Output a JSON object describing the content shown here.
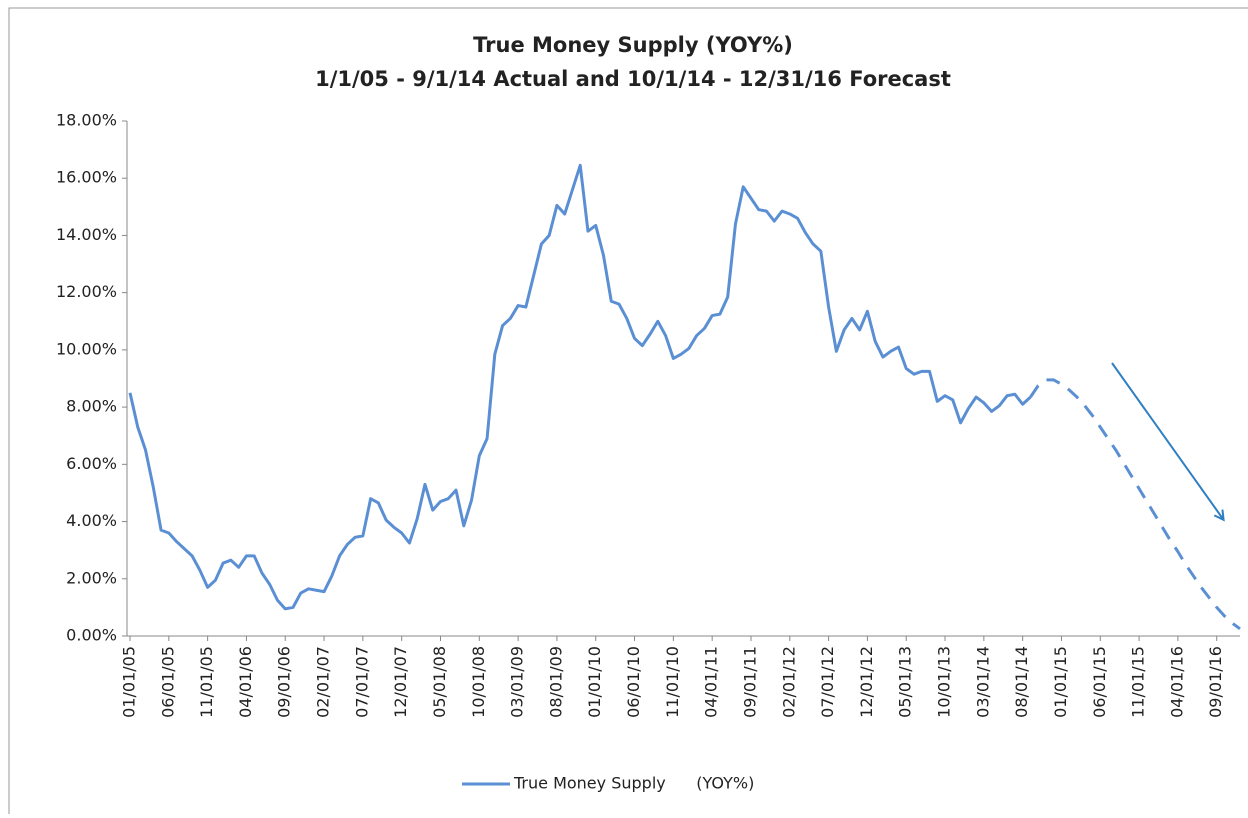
{
  "chart_data": {
    "type": "line",
    "title": "True Money Supply (YOY%)",
    "subtitle": "1/1/05 - 9/1/14 Actual and 10/1/14 - 12/31/16 Forecast",
    "categories": [
      "01/01/05",
      null,
      null,
      null,
      null,
      "06/01/05",
      null,
      null,
      null,
      null,
      "11/01/05",
      null,
      null,
      null,
      null,
      "04/01/06",
      null,
      null,
      null,
      null,
      "09/01/06",
      null,
      null,
      null,
      null,
      "02/01/07",
      null,
      null,
      null,
      null,
      "07/01/07",
      null,
      null,
      null,
      null,
      "12/01/07",
      null,
      null,
      null,
      null,
      "05/01/08",
      null,
      null,
      null,
      null,
      "10/01/08",
      null,
      null,
      null,
      null,
      "03/01/09",
      null,
      null,
      null,
      null,
      "08/01/09",
      null,
      null,
      null,
      null,
      "01/01/10",
      null,
      null,
      null,
      null,
      "06/01/10",
      null,
      null,
      null,
      null,
      "11/01/10",
      null,
      null,
      null,
      null,
      "04/01/11",
      null,
      null,
      null,
      null,
      "09/01/11",
      null,
      null,
      null,
      null,
      "02/01/12",
      null,
      null,
      null,
      null,
      "07/01/12",
      null,
      null,
      null,
      null,
      "12/01/12",
      null,
      null,
      null,
      null,
      "05/01/13",
      null,
      null,
      null,
      null,
      "10/01/13",
      null,
      null,
      null,
      null,
      "03/01/14",
      null,
      null,
      null,
      null,
      "08/01/14",
      null,
      null,
      null,
      null,
      "01/01/15",
      null,
      null,
      null,
      null,
      "06/01/15",
      null,
      null,
      null,
      null,
      "11/01/15",
      null,
      null,
      null,
      null,
      "04/01/16",
      null,
      null,
      null,
      null,
      "09/01/16",
      null,
      null,
      null
    ],
    "series": [
      {
        "name": "True Money Supply      (YOY%)",
        "color": "#5b8fd4",
        "style": "solid",
        "values": [
          8.5,
          7.3,
          6.5,
          5.2,
          3.7,
          3.6,
          3.3,
          3.05,
          2.8,
          2.3,
          1.7,
          1.95,
          2.55,
          2.65,
          2.4,
          2.8,
          2.8,
          2.2,
          1.8,
          1.25,
          0.95,
          1.0,
          1.5,
          1.65,
          1.6,
          1.55,
          2.1,
          2.8,
          3.2,
          3.45,
          3.5,
          4.8,
          4.65,
          4.05,
          3.8,
          3.6,
          3.25,
          4.1,
          5.3,
          4.4,
          4.7,
          4.8,
          5.1,
          3.85,
          4.75,
          6.3,
          6.9,
          9.85,
          10.85,
          11.1,
          11.55,
          11.5,
          12.6,
          13.7,
          14.0,
          15.05,
          14.75,
          15.6,
          16.45,
          14.15,
          14.35,
          13.3,
          11.7,
          11.6,
          11.1,
          10.4,
          10.15,
          10.55,
          11.0,
          10.5,
          9.7,
          9.85,
          10.05,
          10.5,
          10.75,
          11.2,
          11.25,
          11.85,
          14.4,
          15.7,
          15.3,
          14.9,
          14.85,
          14.5,
          14.85,
          14.75,
          14.6,
          14.1,
          13.7,
          13.45,
          11.5,
          9.95,
          10.7,
          11.1,
          10.7,
          11.35,
          10.3,
          9.75,
          9.95,
          10.1,
          9.35,
          9.15,
          9.25,
          9.25,
          8.2,
          8.4,
          8.25,
          7.45,
          7.95,
          8.35,
          8.15,
          7.85,
          8.05,
          8.4,
          8.45,
          8.1,
          8.35,
          null,
          null,
          null,
          null,
          null,
          null,
          null,
          null,
          null,
          null,
          null,
          null,
          null,
          null,
          null,
          null,
          null,
          null,
          null,
          null,
          null,
          null,
          null,
          null,
          null,
          null,
          null
        ]
      },
      {
        "color": "#5b8fd4",
        "style": "dashed",
        "values": [
          null,
          null,
          null,
          null,
          null,
          null,
          null,
          null,
          null,
          null,
          null,
          null,
          null,
          null,
          null,
          null,
          null,
          null,
          null,
          null,
          null,
          null,
          null,
          null,
          null,
          null,
          null,
          null,
          null,
          null,
          null,
          null,
          null,
          null,
          null,
          null,
          null,
          null,
          null,
          null,
          null,
          null,
          null,
          null,
          null,
          null,
          null,
          null,
          null,
          null,
          null,
          null,
          null,
          null,
          null,
          null,
          null,
          null,
          null,
          null,
          null,
          null,
          null,
          null,
          null,
          null,
          null,
          null,
          null,
          null,
          null,
          null,
          null,
          null,
          null,
          null,
          null,
          null,
          null,
          null,
          null,
          null,
          null,
          null,
          null,
          null,
          null,
          null,
          null,
          null,
          null,
          null,
          null,
          null,
          null,
          null,
          null,
          null,
          null,
          null,
          null,
          null,
          null,
          null,
          null,
          null,
          null,
          null,
          null,
          null,
          null,
          null,
          null,
          null,
          null,
          null,
          8.35,
          8.75,
          8.95,
          8.95,
          8.8,
          8.6,
          8.35,
          8.05,
          7.7,
          7.3,
          6.9,
          6.5,
          6.05,
          5.6,
          5.15,
          4.7,
          4.25,
          3.8,
          3.35,
          2.95,
          2.5,
          2.1,
          1.7,
          1.35,
          1.0,
          0.7,
          0.45,
          0.25
        ]
      }
    ],
    "ylim": [
      0,
      18
    ],
    "yticks": [
      {
        "value": 0,
        "label": "0.00%"
      },
      {
        "value": 2,
        "label": "2.00%"
      },
      {
        "value": 4,
        "label": "4.00%"
      },
      {
        "value": 6,
        "label": "6.00%"
      },
      {
        "value": 8,
        "label": "8.00%"
      },
      {
        "value": 10,
        "label": "10.00%"
      },
      {
        "value": 12,
        "label": "12.00%"
      },
      {
        "value": 14,
        "label": "14.00%"
      },
      {
        "value": 16,
        "label": "16.00%"
      },
      {
        "value": 18,
        "label": "18.00%"
      }
    ],
    "grid": false,
    "legend": "bottom"
  }
}
